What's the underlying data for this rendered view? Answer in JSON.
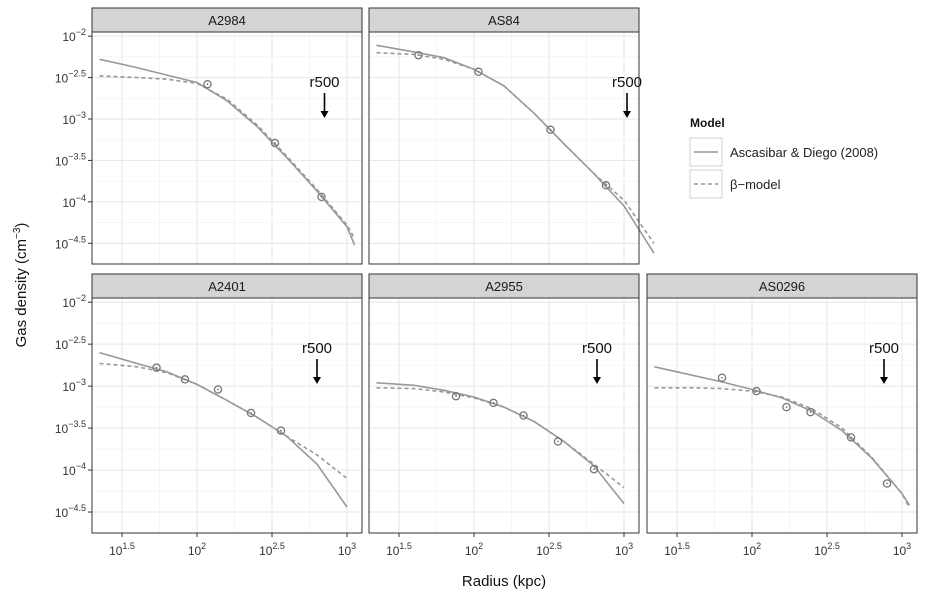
{
  "chart_data": {
    "type": "line",
    "xlabel": "Radius (kpc)",
    "ylabel": "Gas density (cm",
    "ylabel_exp": "−3",
    "ylabel_close": ")",
    "x_scale": "log10",
    "y_scale": "log10",
    "xlim_log10": [
      1.3,
      3.1
    ],
    "ylim_log10": [
      -4.75,
      -1.95
    ],
    "x_major_ticks_log10": [
      1.5,
      2,
      2.5,
      3
    ],
    "x_tick_labels": [
      {
        "base": "10",
        "exp": "1.5"
      },
      {
        "base": "10",
        "exp": "2"
      },
      {
        "base": "10",
        "exp": "2.5"
      },
      {
        "base": "10",
        "exp": "3"
      }
    ],
    "y_major_ticks_log10": [
      -2,
      -2.5,
      -3,
      -3.5,
      -4,
      -4.5
    ],
    "y_tick_labels": [
      {
        "base": "10",
        "exp": "−2"
      },
      {
        "base": "10",
        "exp": "−2.5"
      },
      {
        "base": "10",
        "exp": "−3"
      },
      {
        "base": "10",
        "exp": "−3.5"
      },
      {
        "base": "10",
        "exp": "−4"
      },
      {
        "base": "10",
        "exp": "−4.5"
      }
    ],
    "legend": {
      "title": "Model",
      "entries": [
        {
          "label": "Ascasibar & Diego (2008)",
          "style": "solid",
          "color": "#999999"
        },
        {
          "label": "β−model",
          "style": "dashed",
          "color": "#999999"
        }
      ]
    },
    "annotation_label": "r500",
    "colors": {
      "line": "#999999",
      "points": "#777777",
      "strip": "#d4d4d4",
      "arrow": "#000000"
    },
    "panels": [
      {
        "name": "A2984",
        "r500_log10": 2.85,
        "points": [
          [
            2.07,
            -2.58
          ],
          [
            2.52,
            -3.29
          ],
          [
            2.83,
            -3.94
          ]
        ],
        "ascasibar": [
          [
            1.35,
            -2.28
          ],
          [
            1.6,
            -2.38
          ],
          [
            1.8,
            -2.47
          ],
          [
            2.0,
            -2.56
          ],
          [
            2.2,
            -2.78
          ],
          [
            2.4,
            -3.09
          ],
          [
            2.6,
            -3.47
          ],
          [
            2.8,
            -3.87
          ],
          [
            3.0,
            -4.3
          ],
          [
            3.05,
            -4.52
          ]
        ],
        "beta": [
          [
            1.35,
            -2.48
          ],
          [
            1.6,
            -2.5
          ],
          [
            1.8,
            -2.52
          ],
          [
            2.0,
            -2.57
          ],
          [
            2.2,
            -2.76
          ],
          [
            2.4,
            -3.07
          ],
          [
            2.6,
            -3.45
          ],
          [
            2.8,
            -3.85
          ],
          [
            3.0,
            -4.28
          ],
          [
            3.05,
            -4.44
          ]
        ]
      },
      {
        "name": "AS84",
        "r500_log10": 3.02,
        "points": [
          [
            1.63,
            -2.23
          ],
          [
            2.03,
            -2.43
          ],
          [
            2.51,
            -3.13
          ],
          [
            2.88,
            -3.8
          ]
        ],
        "ascasibar": [
          [
            1.35,
            -2.11
          ],
          [
            1.6,
            -2.19
          ],
          [
            1.8,
            -2.26
          ],
          [
            2.0,
            -2.4
          ],
          [
            2.2,
            -2.6
          ],
          [
            2.4,
            -2.93
          ],
          [
            2.6,
            -3.3
          ],
          [
            2.8,
            -3.66
          ],
          [
            3.0,
            -4.05
          ],
          [
            3.2,
            -4.62
          ]
        ],
        "beta": [
          [
            1.35,
            -2.2
          ],
          [
            1.6,
            -2.22
          ],
          [
            1.8,
            -2.28
          ],
          [
            2.0,
            -2.4
          ],
          [
            2.2,
            -2.6
          ],
          [
            2.4,
            -2.93
          ],
          [
            2.6,
            -3.3
          ],
          [
            2.8,
            -3.66
          ],
          [
            3.0,
            -3.98
          ],
          [
            3.2,
            -4.5
          ]
        ]
      },
      {
        "name": "A2401",
        "r500_log10": 2.8,
        "points": [
          [
            1.73,
            -2.78
          ],
          [
            1.92,
            -2.92
          ],
          [
            2.14,
            -3.04
          ],
          [
            2.36,
            -3.32
          ],
          [
            2.56,
            -3.53
          ]
        ],
        "ascasibar": [
          [
            1.35,
            -2.6
          ],
          [
            1.6,
            -2.73
          ],
          [
            1.8,
            -2.83
          ],
          [
            2.0,
            -2.98
          ],
          [
            2.2,
            -3.17
          ],
          [
            2.4,
            -3.37
          ],
          [
            2.6,
            -3.6
          ],
          [
            2.8,
            -3.93
          ],
          [
            3.0,
            -4.44
          ]
        ],
        "beta": [
          [
            1.35,
            -2.73
          ],
          [
            1.6,
            -2.77
          ],
          [
            1.8,
            -2.84
          ],
          [
            2.0,
            -2.98
          ],
          [
            2.2,
            -3.17
          ],
          [
            2.4,
            -3.37
          ],
          [
            2.6,
            -3.6
          ],
          [
            2.8,
            -3.82
          ],
          [
            3.0,
            -4.1
          ]
        ]
      },
      {
        "name": "A2955",
        "r500_log10": 2.82,
        "points": [
          [
            1.88,
            -3.12
          ],
          [
            2.13,
            -3.2
          ],
          [
            2.33,
            -3.35
          ],
          [
            2.56,
            -3.66
          ],
          [
            2.8,
            -3.99
          ]
        ],
        "ascasibar": [
          [
            1.35,
            -2.96
          ],
          [
            1.6,
            -2.99
          ],
          [
            1.8,
            -3.05
          ],
          [
            2.0,
            -3.13
          ],
          [
            2.2,
            -3.25
          ],
          [
            2.4,
            -3.42
          ],
          [
            2.6,
            -3.66
          ],
          [
            2.8,
            -3.95
          ],
          [
            3.0,
            -4.4
          ]
        ],
        "beta": [
          [
            1.35,
            -3.02
          ],
          [
            1.6,
            -3.03
          ],
          [
            1.8,
            -3.07
          ],
          [
            2.0,
            -3.14
          ],
          [
            2.2,
            -3.25
          ],
          [
            2.4,
            -3.42
          ],
          [
            2.6,
            -3.66
          ],
          [
            2.8,
            -3.93
          ],
          [
            3.0,
            -4.21
          ]
        ]
      },
      {
        "name": "AS0296",
        "r500_log10": 2.88,
        "points": [
          [
            1.8,
            -2.9
          ],
          [
            2.03,
            -3.06
          ],
          [
            2.23,
            -3.25
          ],
          [
            2.39,
            -3.31
          ],
          [
            2.66,
            -3.61
          ],
          [
            2.9,
            -4.16
          ]
        ],
        "ascasibar": [
          [
            1.35,
            -2.77
          ],
          [
            1.6,
            -2.87
          ],
          [
            1.8,
            -2.95
          ],
          [
            2.0,
            -3.04
          ],
          [
            2.2,
            -3.14
          ],
          [
            2.4,
            -3.3
          ],
          [
            2.6,
            -3.53
          ],
          [
            2.8,
            -3.86
          ],
          [
            3.0,
            -4.28
          ],
          [
            3.05,
            -4.42
          ]
        ],
        "beta": [
          [
            1.35,
            -3.02
          ],
          [
            1.6,
            -3.02
          ],
          [
            1.8,
            -3.03
          ],
          [
            2.0,
            -3.06
          ],
          [
            2.2,
            -3.13
          ],
          [
            2.4,
            -3.27
          ],
          [
            2.6,
            -3.5
          ],
          [
            2.8,
            -3.85
          ],
          [
            3.0,
            -4.28
          ],
          [
            3.05,
            -4.45
          ]
        ]
      }
    ]
  }
}
